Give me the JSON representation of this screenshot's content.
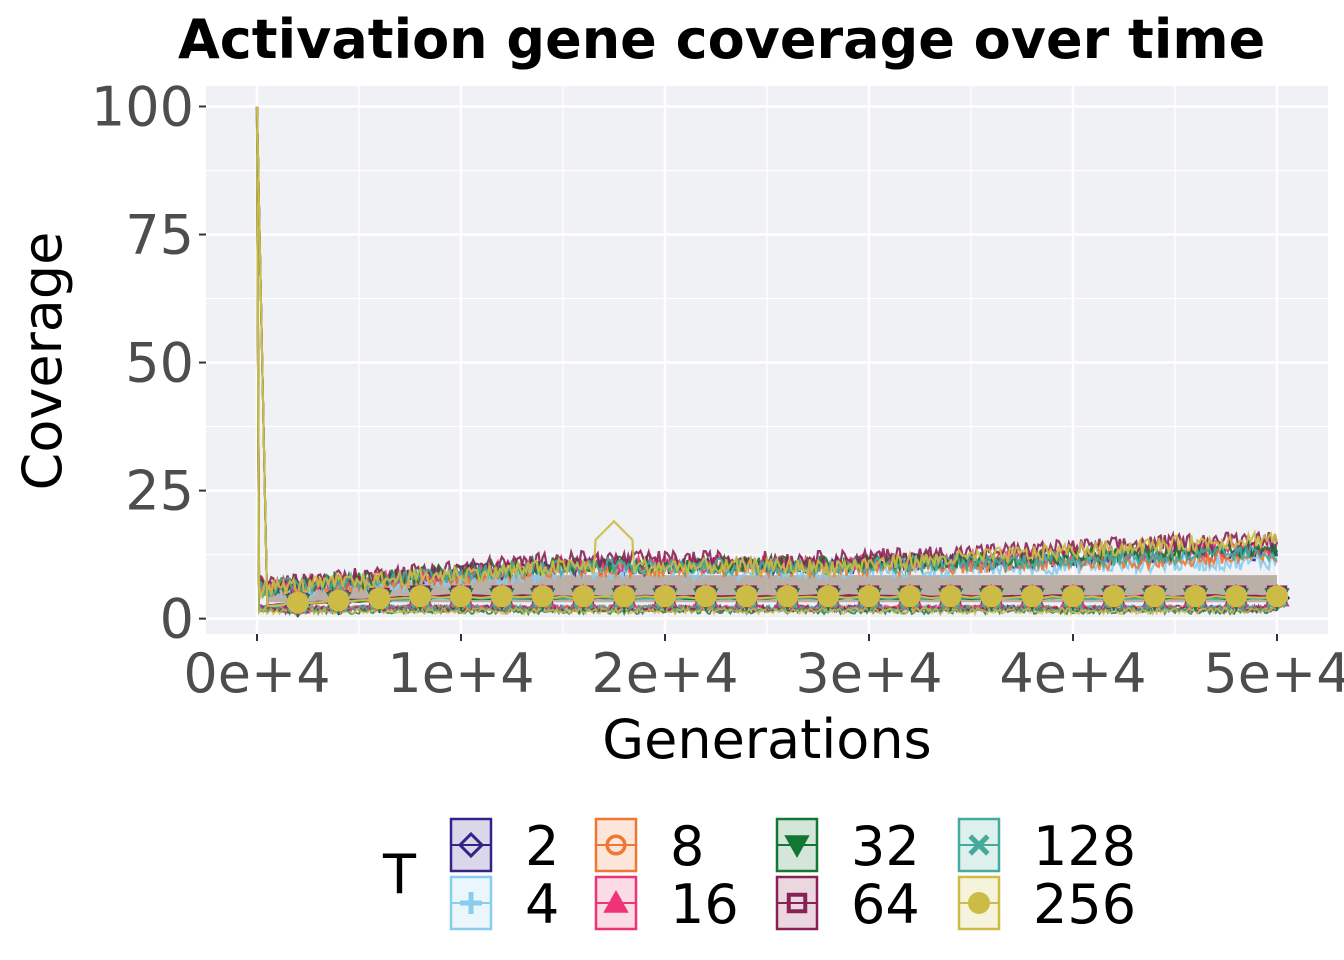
{
  "chart_data": {
    "type": "line",
    "title": "Activation gene coverage over time",
    "xlabel": "Generations",
    "ylabel": "Coverage",
    "xlim": [
      -2500,
      52500
    ],
    "ylim": [
      -3,
      104
    ],
    "x_ticks": [
      0,
      10000,
      20000,
      30000,
      40000,
      50000
    ],
    "x_tick_labels": [
      "0e+4",
      "1e+4",
      "2e+4",
      "3e+4",
      "4e+4",
      "5e+4"
    ],
    "y_ticks": [
      0,
      25,
      50,
      75,
      100
    ],
    "y_tick_labels": [
      "0",
      "25",
      "50",
      "75",
      "100"
    ],
    "grid": true,
    "legend_position": "bottom",
    "legend_title": "T",
    "marker_x": [
      2000,
      4000,
      6000,
      8000,
      10000,
      12000,
      14000,
      16000,
      18000,
      20000,
      22000,
      24000,
      26000,
      28000,
      30000,
      32000,
      34000,
      36000,
      38000,
      40000,
      42000,
      44000,
      46000,
      48000,
      50000
    ],
    "series": [
      {
        "name": "2",
        "color": "#332288",
        "marker": "diamond",
        "start": 100,
        "baseline": 4.2,
        "upper": 9.5,
        "lower": 2.0,
        "max_noise": 14.5
      },
      {
        "name": "4",
        "color": "#88CCEE",
        "marker": "plus",
        "start": 100,
        "baseline": 4.0,
        "upper": 8.5,
        "lower": 2.0,
        "max_noise": 12.0
      },
      {
        "name": "8",
        "color": "#EE7733",
        "marker": "circle-open",
        "start": 100,
        "baseline": 4.1,
        "upper": 9.0,
        "lower": 2.0,
        "max_noise": 13.0
      },
      {
        "name": "16",
        "color": "#EE3377",
        "marker": "triangle",
        "start": 100,
        "baseline": 4.3,
        "upper": 10.0,
        "lower": 2.0,
        "max_noise": 15.5
      },
      {
        "name": "32",
        "color": "#117733",
        "marker": "triangle-down",
        "start": 100,
        "baseline": 4.0,
        "upper": 10.0,
        "lower": 1.5,
        "max_noise": 15.0
      },
      {
        "name": "64",
        "color": "#882255",
        "marker": "square-open",
        "start": 100,
        "baseline": 4.4,
        "upper": 11.0,
        "lower": 2.0,
        "max_noise": 18.0
      },
      {
        "name": "128",
        "color": "#44AA99",
        "marker": "cross",
        "start": 100,
        "baseline": 4.0,
        "upper": 9.5,
        "lower": 2.0,
        "max_noise": 14.0
      },
      {
        "name": "256",
        "color": "#CCBB44",
        "marker": "dot",
        "start": 100,
        "baseline": 4.2,
        "upper": 9.5,
        "lower": 1.5,
        "max_noise": 19.0
      }
    ]
  }
}
